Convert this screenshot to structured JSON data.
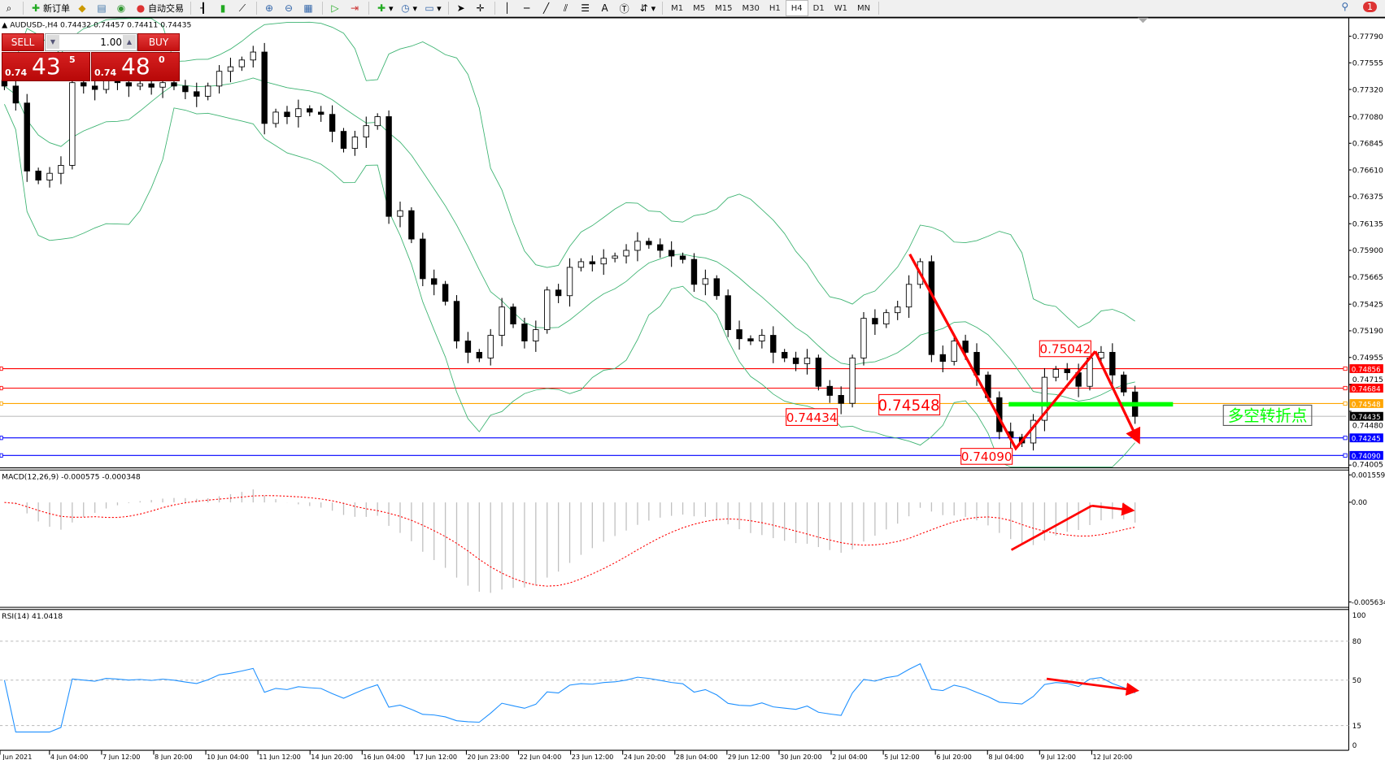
{
  "toolbar": {
    "new_order": "新订单",
    "auto_trading": "自动交易",
    "timeframes": [
      "M1",
      "M5",
      "M15",
      "M30",
      "H1",
      "H4",
      "D1",
      "W1",
      "MN"
    ],
    "active_timeframe": "H4",
    "notification_count": "1"
  },
  "chart": {
    "title": "AUDUSD-,H4  0.74432 0.74457 0.74411 0.74435",
    "symbol": "AUDUSD-",
    "timeframe": "H4"
  },
  "trade_panel": {
    "sell_label": "SELL",
    "buy_label": "BUY",
    "lot": "1.00",
    "sell_prefix": "0.74",
    "sell_big": "43",
    "sell_pip": "5",
    "buy_prefix": "0.74",
    "buy_big": "48",
    "buy_pip": "0"
  },
  "price_axis": [
    "0.77790",
    "0.77555",
    "0.77320",
    "0.77080",
    "0.76845",
    "0.76610",
    "0.76375",
    "0.76135",
    "0.75900",
    "0.75665",
    "0.75425",
    "0.75190",
    "0.74955",
    "0.74715",
    "0.74480",
    "0.74005"
  ],
  "levels": [
    {
      "price": "0.74856",
      "color": "#ff0000"
    },
    {
      "price": "0.74684",
      "color": "#ff0000"
    },
    {
      "price": "0.74548",
      "color": "#ffa500"
    },
    {
      "price": "0.74435",
      "color": "#000000",
      "line": "#c0c0c0"
    },
    {
      "price": "0.74245",
      "color": "#0000ff"
    },
    {
      "price": "0.74090",
      "color": "#0000ff"
    }
  ],
  "annotations": {
    "low_label_1": "0.74434",
    "pivot_label": "0.74548",
    "high_label": "0.75042",
    "low_label_2": "0.74090",
    "turning_point_text": "多空转折点",
    "turning_point_color": "#00ff00",
    "arrow_color": "#ff0000"
  },
  "macd": {
    "title": "MACD(12,26,9) -0.000575 -0.000348",
    "axis": [
      "0.001559",
      "0.00",
      "-0.005634"
    ]
  },
  "rsi": {
    "title": "RSI(14) 41.0418",
    "axis": [
      "100",
      "80",
      "50",
      "15",
      "0"
    ]
  },
  "time_axis": [
    "2 Jun 2021",
    "4 Jun 04:00",
    "7 Jun 12:00",
    "8 Jun 20:00",
    "10 Jun 04:00",
    "11 Jun 12:00",
    "14 Jun 20:00",
    "16 Jun 04:00",
    "17 Jun 12:00",
    "20 Jun 23:00",
    "22 Jun 04:00",
    "23 Jun 12:00",
    "24 Jun 20:00",
    "28 Jun 04:00",
    "29 Jun 12:00",
    "30 Jun 20:00",
    "2 Jul 04:00",
    "5 Jul 12:00",
    "6 Jul 20:00",
    "8 Jul 04:00",
    "9 Jul 12:00",
    "12 Jul 20:00"
  ],
  "chart_data": {
    "type": "candlestick",
    "closes": [
      0.7735,
      0.772,
      0.766,
      0.7652,
      0.7658,
      0.7665,
      0.7738,
      0.7735,
      0.7732,
      0.774,
      0.7738,
      0.7735,
      0.7737,
      0.7734,
      0.7738,
      0.7735,
      0.773,
      0.7726,
      0.7735,
      0.7748,
      0.7752,
      0.7758,
      0.7765,
      0.7702,
      0.7712,
      0.7708,
      0.7715,
      0.7712,
      0.771,
      0.7695,
      0.768,
      0.769,
      0.77,
      0.7708,
      0.762,
      0.7625,
      0.76,
      0.7565,
      0.756,
      0.7545,
      0.751,
      0.75,
      0.7495,
      0.7515,
      0.754,
      0.7525,
      0.751,
      0.752,
      0.7555,
      0.755,
      0.7575,
      0.758,
      0.7578,
      0.7583,
      0.7585,
      0.759,
      0.7598,
      0.7595,
      0.759,
      0.7585,
      0.7582,
      0.756,
      0.7565,
      0.755,
      0.752,
      0.7512,
      0.751,
      0.7515,
      0.75,
      0.7495,
      0.749,
      0.7495,
      0.747,
      0.7462,
      0.7455,
      0.7495,
      0.753,
      0.7525,
      0.7535,
      0.754,
      0.756,
      0.758,
      0.7498,
      0.7492,
      0.751,
      0.75,
      0.748,
      0.746,
      0.743,
      0.7425,
      0.742,
      0.744,
      0.7478,
      0.7485,
      0.7482,
      0.747,
      0.7495,
      0.75,
      0.748,
      0.7465,
      0.74435
    ],
    "price_range": [
      0.74005,
      0.7779
    ],
    "indicators": [
      "Bollinger Bands",
      "MACD(12,26,9)",
      "RSI(14)"
    ],
    "colors": {
      "bands": "#3cb371",
      "macd_hist": "#c0c0c0",
      "macd_signal": "#ff0000",
      "rsi": "#1e90ff"
    }
  }
}
